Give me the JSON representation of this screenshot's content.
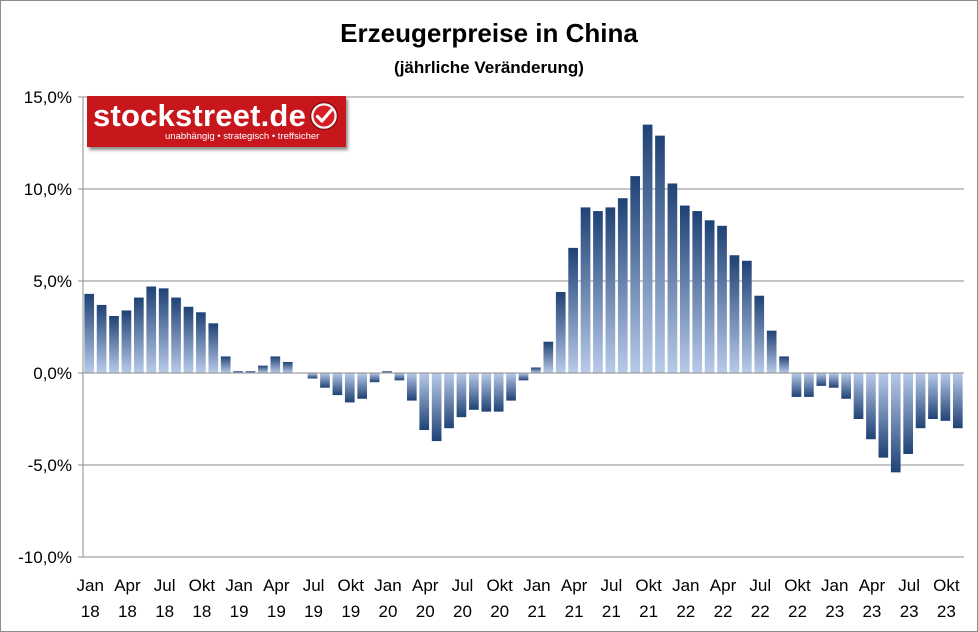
{
  "title": "Erzeugerpreise in China",
  "subtitle": "(jährliche Veränderung)",
  "logo": {
    "text": "stockstreet.de",
    "tagline": "unabhängig • strategisch • treffsicher",
    "icon": "checkmark-icon",
    "color": "#c8161d"
  },
  "chart_data": {
    "type": "bar",
    "title": "Erzeugerpreise in China",
    "subtitle": "(jährliche Veränderung)",
    "y_ticks": [
      "15,0%",
      "10,0%",
      "5,0%",
      "0,0%",
      "-5,0%",
      "-10,0%"
    ],
    "ylim": [
      -10,
      15
    ],
    "grid": true,
    "bar_color_top": "#1f4275",
    "bar_color_bottom": "#b8cae9",
    "x_tick_labels": [
      {
        "month": "Jan",
        "year": "18",
        "index": 0
      },
      {
        "month": "Apr",
        "year": "18",
        "index": 3
      },
      {
        "month": "Jul",
        "year": "18",
        "index": 6
      },
      {
        "month": "Okt",
        "year": "18",
        "index": 9
      },
      {
        "month": "Jan",
        "year": "19",
        "index": 12
      },
      {
        "month": "Apr",
        "year": "19",
        "index": 15
      },
      {
        "month": "Jul",
        "year": "19",
        "index": 18
      },
      {
        "month": "Okt",
        "year": "19",
        "index": 21
      },
      {
        "month": "Jan",
        "year": "20",
        "index": 24
      },
      {
        "month": "Apr",
        "year": "20",
        "index": 27
      },
      {
        "month": "Jul",
        "year": "20",
        "index": 30
      },
      {
        "month": "Okt",
        "year": "20",
        "index": 33
      },
      {
        "month": "Jan",
        "year": "21",
        "index": 36
      },
      {
        "month": "Apr",
        "year": "21",
        "index": 39
      },
      {
        "month": "Jul",
        "year": "21",
        "index": 42
      },
      {
        "month": "Okt",
        "year": "21",
        "index": 45
      },
      {
        "month": "Jan",
        "year": "22",
        "index": 48
      },
      {
        "month": "Apr",
        "year": "22",
        "index": 51
      },
      {
        "month": "Jul",
        "year": "22",
        "index": 54
      },
      {
        "month": "Okt",
        "year": "22",
        "index": 57
      },
      {
        "month": "Jan",
        "year": "23",
        "index": 60
      },
      {
        "month": "Apr",
        "year": "23",
        "index": 63
      },
      {
        "month": "Jul",
        "year": "23",
        "index": 66
      },
      {
        "month": "Okt",
        "year": "23",
        "index": 69
      }
    ],
    "values": [
      4.3,
      3.7,
      3.1,
      3.4,
      4.1,
      4.7,
      4.6,
      4.1,
      3.6,
      3.3,
      2.7,
      0.9,
      0.1,
      0.1,
      0.4,
      0.9,
      0.6,
      0.0,
      -0.3,
      -0.8,
      -1.2,
      -1.6,
      -1.4,
      -0.5,
      0.1,
      -0.4,
      -1.5,
      -3.1,
      -3.7,
      -3.0,
      -2.4,
      -2.0,
      -2.1,
      -2.1,
      -1.5,
      -0.4,
      0.3,
      1.7,
      4.4,
      6.8,
      9.0,
      8.8,
      9.0,
      9.5,
      10.7,
      13.5,
      12.9,
      10.3,
      9.1,
      8.8,
      8.3,
      8.0,
      6.4,
      6.1,
      4.2,
      2.3,
      0.9,
      -1.3,
      -1.3,
      -0.7,
      -0.8,
      -1.4,
      -2.5,
      -3.6,
      -4.6,
      -5.4,
      -4.4,
      -3.0,
      -2.5,
      -2.6,
      -3.0
    ]
  }
}
